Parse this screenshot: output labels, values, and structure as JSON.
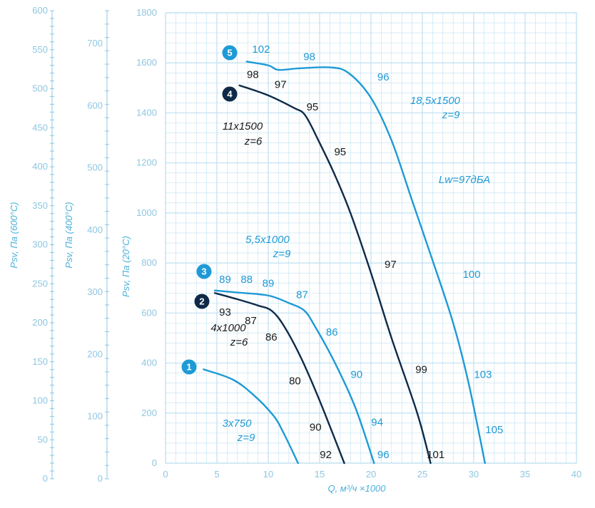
{
  "chart_data": {
    "type": "line",
    "xlabel": "Q, м³/ч ×1000",
    "ylabel": "Psv, Па (20°C)",
    "ylabel_400": "Psv, Па (400°C)",
    "ylabel_600": "Psv, Па (600°C)",
    "xlim": [
      0,
      40
    ],
    "ylim": [
      0,
      1800
    ],
    "x_ticks": [
      "0",
      "5",
      "10",
      "15",
      "20",
      "25",
      "30",
      "35",
      "40"
    ],
    "y_ticks": [
      "0",
      "200",
      "400",
      "600",
      "800",
      "1000",
      "1200",
      "1400",
      "1600",
      "1800"
    ],
    "y400_ticks": [
      "0",
      "100",
      "200",
      "300",
      "400",
      "500",
      "600",
      "700"
    ],
    "y600_ticks": [
      "0",
      "50",
      "100",
      "150",
      "200",
      "250",
      "300",
      "350",
      "400",
      "450",
      "500",
      "550",
      "600"
    ],
    "grid": true,
    "colors": {
      "light": "#1e9ad6",
      "dark": "#0e2a48",
      "grid": "#bfe0f2",
      "axis": "#8fc6e2"
    },
    "series": [
      {
        "badge": "1",
        "tone": "light",
        "annotation": [
          "3x750",
          "z=9"
        ],
        "points": [
          [
            3.7,
            375
          ],
          [
            6.5,
            335
          ],
          [
            8.5,
            275
          ],
          [
            10.5,
            190
          ],
          [
            11.5,
            120
          ],
          [
            12.9,
            0
          ]
        ],
        "labels": []
      },
      {
        "badge": "2",
        "tone": "dark",
        "annotation": [
          "4x1000",
          "z=6"
        ],
        "points": [
          [
            4.8,
            680
          ],
          [
            7,
            655
          ],
          [
            9,
            630
          ],
          [
            10.3,
            610
          ],
          [
            11.5,
            550
          ],
          [
            13.2,
            420
          ],
          [
            15,
            250
          ],
          [
            17.4,
            0
          ]
        ],
        "labels": [
          {
            "text": "93",
            "x": 5.8,
            "y": 590
          },
          {
            "text": "87",
            "x": 8.3,
            "y": 555
          },
          {
            "text": "86",
            "x": 10.3,
            "y": 490
          },
          {
            "text": "80",
            "x": 12.6,
            "y": 315
          },
          {
            "text": "90",
            "x": 14.6,
            "y": 130
          },
          {
            "text": "92",
            "x": 15.6,
            "y": 20
          }
        ]
      },
      {
        "badge": "3",
        "tone": "light",
        "annotation": [
          "5,5x1000",
          "z=9"
        ],
        "points": [
          [
            4.8,
            690
          ],
          [
            7,
            682
          ],
          [
            10,
            670
          ],
          [
            12,
            640
          ],
          [
            13.5,
            610
          ],
          [
            14.5,
            550
          ],
          [
            16.5,
            400
          ],
          [
            18.5,
            220
          ],
          [
            20.3,
            0
          ]
        ],
        "labels": [
          {
            "text": "89",
            "x": 5.8,
            "y": 720
          },
          {
            "text": "88",
            "x": 7.9,
            "y": 720
          },
          {
            "text": "89",
            "x": 10,
            "y": 705
          },
          {
            "text": "87",
            "x": 13.3,
            "y": 660
          },
          {
            "text": "86",
            "x": 16.2,
            "y": 510
          },
          {
            "text": "90",
            "x": 18.6,
            "y": 340
          },
          {
            "text": "94",
            "x": 20.6,
            "y": 150
          },
          {
            "text": "96",
            "x": 21.2,
            "y": 20
          }
        ]
      },
      {
        "badge": "4",
        "tone": "dark",
        "annotation": [
          "11x1500",
          "z=6"
        ],
        "points": [
          [
            7.2,
            1510
          ],
          [
            10,
            1470
          ],
          [
            12.5,
            1420
          ],
          [
            13.6,
            1390
          ],
          [
            15,
            1280
          ],
          [
            16.5,
            1150
          ],
          [
            18,
            1000
          ],
          [
            20,
            760
          ],
          [
            22,
            500
          ],
          [
            24.5,
            200
          ],
          [
            25.8,
            0
          ]
        ],
        "labels": [
          {
            "text": "98",
            "x": 8.5,
            "y": 1540
          },
          {
            "text": "97",
            "x": 11.2,
            "y": 1500
          },
          {
            "text": "95",
            "x": 14.3,
            "y": 1410
          },
          {
            "text": "95",
            "x": 17,
            "y": 1230
          },
          {
            "text": "97",
            "x": 21.9,
            "y": 780
          },
          {
            "text": "99",
            "x": 24.9,
            "y": 360
          },
          {
            "text": "101",
            "x": 26.3,
            "y": 20
          }
        ]
      },
      {
        "badge": "5",
        "tone": "light",
        "annotation": [
          "18,5x1500",
          "z=9"
        ],
        "points": [
          [
            7.9,
            1605
          ],
          [
            10,
            1590
          ],
          [
            11,
            1572
          ],
          [
            13,
            1578
          ],
          [
            16,
            1582
          ],
          [
            17.8,
            1560
          ],
          [
            20,
            1460
          ],
          [
            22,
            1290
          ],
          [
            24,
            1050
          ],
          [
            26,
            810
          ],
          [
            28,
            560
          ],
          [
            29.5,
            320
          ],
          [
            31.1,
            0
          ]
        ],
        "labels": [
          {
            "text": "102",
            "x": 9.3,
            "y": 1640
          },
          {
            "text": "98",
            "x": 14,
            "y": 1610
          },
          {
            "text": "96",
            "x": 21.2,
            "y": 1530
          },
          {
            "text": "100",
            "x": 29.8,
            "y": 740
          },
          {
            "text": "103",
            "x": 30.9,
            "y": 340
          },
          {
            "text": "105",
            "x": 32,
            "y": 120
          }
        ]
      }
    ],
    "extra_annotation": "Lw=97дБА"
  }
}
